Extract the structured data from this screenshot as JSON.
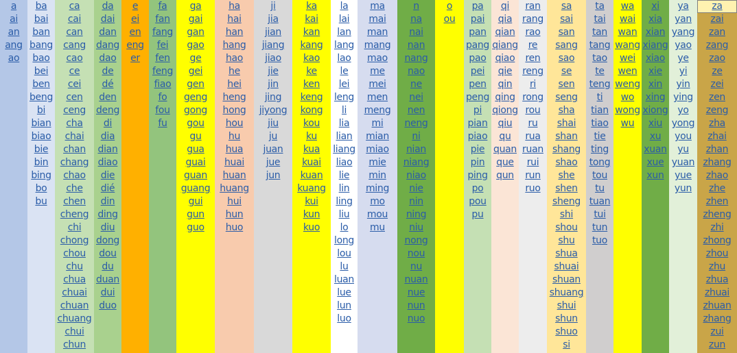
{
  "columns": [
    {
      "items": [
        "a",
        "ai",
        "an",
        "ang",
        "ao"
      ]
    },
    {
      "items": [
        "ba",
        "bai",
        "ban",
        "bang",
        "bao",
        "bei",
        "ben",
        "beng",
        "bi",
        "bian",
        "biao",
        "bie",
        "bin",
        "bing",
        "bo",
        "bu"
      ]
    },
    {
      "items": [
        "ca",
        "cai",
        "can",
        "cang",
        "cao",
        "ce",
        "cei",
        "cen",
        "ceng",
        "cha",
        "chai",
        "chan",
        "chang",
        "chao",
        "che",
        "chen",
        "cheng",
        "chi",
        "chong",
        "chou",
        "chu",
        "chua",
        "chuai",
        "chuan",
        "chuang",
        "chui",
        "chun"
      ]
    },
    {
      "items": [
        "da",
        "dai",
        "dan",
        "dang",
        "dao",
        "de",
        "dé",
        "den",
        "deng",
        "di",
        "dia",
        "dian",
        "diao",
        "die",
        "dié",
        "din",
        "ding",
        "diu",
        "dong",
        "dou",
        "du",
        "duan",
        "dui",
        "duo"
      ]
    },
    {
      "items": [
        "e",
        "ei",
        "en",
        "eng",
        "er"
      ]
    },
    {
      "items": [
        "fa",
        "fan",
        "fang",
        "fei",
        "fen",
        "feng",
        "fiao",
        "fo",
        "fou",
        "fu"
      ]
    },
    {
      "items": [
        "ga",
        "gai",
        "gan",
        "gao",
        "ge",
        "gei",
        "gen",
        "geng",
        "gong",
        "gou",
        "gu",
        "gua",
        "guai",
        "guan",
        "guang",
        "gui",
        "gun",
        "guo"
      ]
    },
    {
      "items": [
        "ha",
        "hai",
        "han",
        "hang",
        "hao",
        "he",
        "hei",
        "heng",
        "hong",
        "hou",
        "hu",
        "hua",
        "huai",
        "huan",
        "huang",
        "hui",
        "hun",
        "huo"
      ]
    },
    {
      "items": [
        "ji",
        "jia",
        "jian",
        "jiang",
        "jiao",
        "jie",
        "jin",
        "jing",
        "jiyong",
        "jiu",
        "ju",
        "juan",
        "jue",
        "jun"
      ]
    },
    {
      "items": [
        "ka",
        "kai",
        "kan",
        "kang",
        "kao",
        "ke",
        "ken",
        "keng",
        "kong",
        "kou",
        "ku",
        "kua",
        "kuai",
        "kuan",
        "kuang",
        "kui",
        "kun",
        "kuo"
      ]
    },
    {
      "items": [
        "la",
        "lai",
        "lan",
        "lang",
        "lao",
        "le",
        "lei",
        "leng",
        "li",
        "lia",
        "lian",
        "liang",
        "liao",
        "lie",
        "lin",
        "ling",
        "liu",
        "lo",
        "long",
        "lou",
        "lu",
        "luan",
        "lue",
        "lun",
        "luo"
      ]
    },
    {
      "items": [
        "ma",
        "mai",
        "man",
        "mang",
        "mao",
        "me",
        "mei",
        "men",
        "meng",
        "mi",
        "mian",
        "miao",
        "mie",
        "min",
        "ming",
        "mo",
        "mou",
        "mu"
      ]
    },
    {
      "items": [
        "n",
        "na",
        "nai",
        "nan",
        "nang",
        "nao",
        "ne",
        "nei",
        "nen",
        "neng",
        "ni",
        "nian",
        "niang",
        "niao",
        "nie",
        "nin",
        "ning",
        "niu",
        "nong",
        "nou",
        "nu",
        "nuan",
        "nue",
        "nun",
        "nuo"
      ]
    },
    {
      "items": [
        "o",
        "ou"
      ]
    },
    {
      "items": [
        "pa",
        "pai",
        "pan",
        "pang",
        "pao",
        "pei",
        "pen",
        "peng",
        "pi",
        "pian",
        "piao",
        "pie",
        "pin",
        "ping",
        "po",
        "pou",
        "pu"
      ]
    },
    {
      "items": [
        "qi",
        "qia",
        "qian",
        "qiang",
        "qiao",
        "qie",
        "qin",
        "qing",
        "qiong",
        "qiu",
        "qu",
        "quan",
        "que",
        "qun"
      ]
    },
    {
      "items": [
        "ran",
        "rang",
        "rao",
        "re",
        "ren",
        "reng",
        "ri",
        "rong",
        "rou",
        "ru",
        "rua",
        "ruan",
        "rui",
        "run",
        "ruo"
      ]
    },
    {
      "items": [
        "sa",
        "sai",
        "san",
        "sang",
        "sao",
        "se",
        "sen",
        "seng",
        "sha",
        "shai",
        "shan",
        "shang",
        "shao",
        "she",
        "shen",
        "sheng",
        "shi",
        "shou",
        "shu",
        "shua",
        "shuai",
        "shuan",
        "shuang",
        "shui",
        "shun",
        "shuo",
        "si"
      ]
    },
    {
      "items": [
        "ta",
        "tai",
        "tan",
        "tang",
        "tao",
        "te",
        "teng",
        "ti",
        "tian",
        "tiao",
        "tie",
        "ting",
        "tong",
        "tou",
        "tu",
        "tuan",
        "tui",
        "tun",
        "tuo"
      ]
    },
    {
      "items": [
        "wa",
        "wai",
        "wan",
        "wang",
        "wei",
        "wen",
        "weng",
        "wo",
        "wong",
        "wu"
      ]
    },
    {
      "items": [
        "xi",
        "xia",
        "xian",
        "xiang",
        "xiao",
        "xie",
        "xin",
        "xing",
        "xiong",
        "xiu",
        "xu",
        "xuan",
        "xue",
        "xun"
      ]
    },
    {
      "items": [
        "ya",
        "yan",
        "yang",
        "yao",
        "ye",
        "yi",
        "yin",
        "ying",
        "yo",
        "yong",
        "you",
        "yu",
        "yuan",
        "yue",
        "yun"
      ]
    },
    {
      "items": [
        "za",
        "zai",
        "zan",
        "zang",
        "zao",
        "ze",
        "zei",
        "zen",
        "zeng",
        "zha",
        "zhai",
        "zhan",
        "zhang",
        "zhao",
        "zhe",
        "zhen",
        "zheng",
        "zhi",
        "zhong",
        "zhou",
        "zhu",
        "zhua",
        "zhuai",
        "zhuan",
        "zhang",
        "zui",
        "zun"
      ]
    }
  ]
}
